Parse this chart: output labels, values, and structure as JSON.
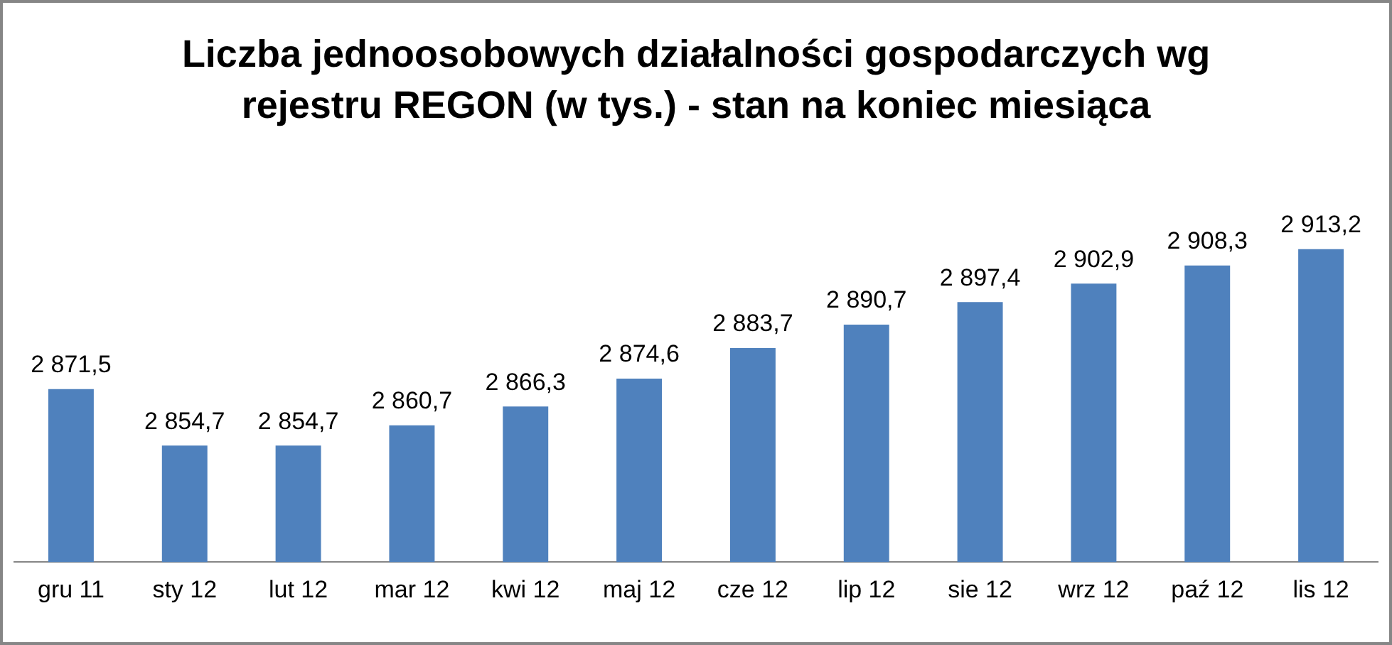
{
  "chart_data": {
    "type": "bar",
    "title": "Liczba jednoosobowych działalności gospodarczych wg rejestru REGON (w tys.) - stan na koniec miesiąca",
    "categories": [
      "gru 11",
      "sty 12",
      "lut 12",
      "mar 12",
      "kwi 12",
      "maj 12",
      "cze 12",
      "lip 12",
      "sie 12",
      "wrz 12",
      "paź 12",
      "lis 12"
    ],
    "values": [
      2871.5,
      2854.7,
      2854.7,
      2860.7,
      2866.3,
      2874.6,
      2883.7,
      2890.7,
      2897.4,
      2902.9,
      2908.3,
      2913.2
    ],
    "value_labels": [
      "2 871,5",
      "2 854,7",
      "2 854,7",
      "2 860,7",
      "2 866,3",
      "2 874,6",
      "2 883,7",
      "2 890,7",
      "2 897,4",
      "2 902,9",
      "2 908,3",
      "2 913,2"
    ],
    "color": "#4f81bd",
    "tick_labels": "x",
    "grid": false,
    "legend": false
  }
}
